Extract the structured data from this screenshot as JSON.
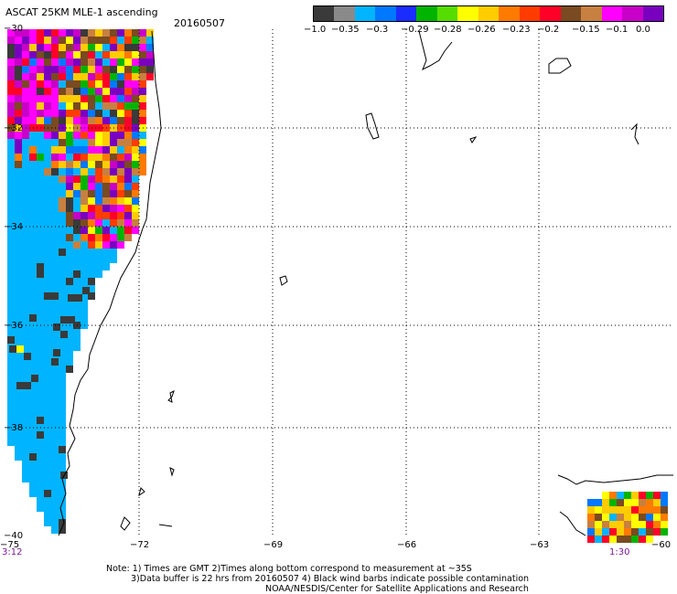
{
  "header": {
    "title": "ASCAT 25KM MLE-1 ascending",
    "date": "20160507"
  },
  "colorbar": {
    "colors": [
      "#3a3a3a",
      "#8a8a8a",
      "#00b4ff",
      "#0078ff",
      "#1a2cff",
      "#00b400",
      "#55dd00",
      "#ffff00",
      "#ffcc00",
      "#ff7a00",
      "#ff3c00",
      "#ff0028",
      "#7a4a20",
      "#c88040",
      "#ff00ff",
      "#c800c8",
      "#7a00c0"
    ],
    "tick_labels": [
      "−1.0",
      "−0.35",
      "−0.3",
      "−0.29",
      "−0.28",
      "−0.26",
      "−0.23",
      "−0.2",
      "−0.15",
      "−0.1",
      "0.0"
    ]
  },
  "axes": {
    "lat_labels": [
      "−30",
      "−32",
      "−34",
      "−36",
      "−38",
      "−40"
    ],
    "lon_labels": [
      "−75",
      "−72",
      "−69",
      "−66",
      "−63",
      "−60"
    ],
    "time_labels": [
      "3:12",
      "1:30"
    ]
  },
  "notes": [
    "Note: 1) Times are GMT 2)Times along bottom correspond to measurement at ~35S",
    "3)Data buffer is 22 hrs from 20160507 4) Black wind barbs indicate possible contamination",
    "NOAA/NESDIS/Center for Satellite Applications and Research"
  ]
}
